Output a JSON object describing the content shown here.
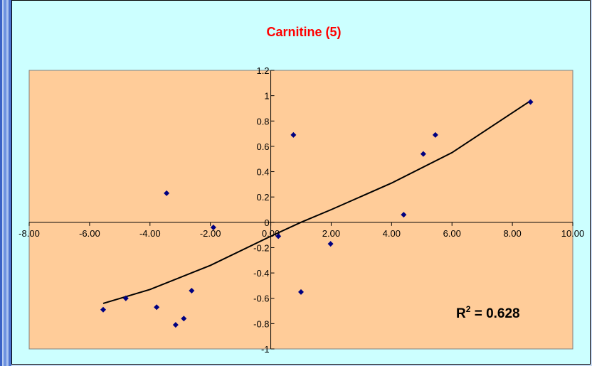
{
  "colors": {
    "chart_area": "#ccffff",
    "plot_area": "#ffcc99",
    "title": "#ff0000",
    "points": "#000080",
    "trendline": "#000000"
  },
  "chart_data": {
    "type": "scatter",
    "title": "Carnitine (5)",
    "xlabel": "",
    "ylabel": "",
    "xlim": [
      -8,
      10
    ],
    "ylim": [
      -1,
      1.2
    ],
    "x_ticks": [
      "-8.00",
      "-6.00",
      "-4.00",
      "-2.00",
      "0.00",
      "2.00",
      "4.00",
      "6.00",
      "8.00",
      "10.00"
    ],
    "x_tick_values": [
      -8,
      -6,
      -4,
      -2,
      0,
      2,
      4,
      6,
      8,
      10
    ],
    "y_ticks": [
      "1.2",
      "1",
      "0.8",
      "0.6",
      "0.4",
      "0.2",
      "0",
      "-0.2",
      "-0.4",
      "-0.6",
      "-0.8",
      "-1"
    ],
    "y_tick_values": [
      1.2,
      1,
      0.8,
      0.6,
      0.4,
      0.2,
      0,
      -0.2,
      -0.4,
      -0.6,
      -0.8,
      -1
    ],
    "grid": false,
    "legend": "none",
    "marker": "diamond",
    "points": [
      {
        "x": -5.55,
        "y": -0.69
      },
      {
        "x": -4.8,
        "y": -0.6
      },
      {
        "x": -3.78,
        "y": -0.67
      },
      {
        "x": -3.45,
        "y": 0.23
      },
      {
        "x": -3.15,
        "y": -0.81
      },
      {
        "x": -2.88,
        "y": -0.76
      },
      {
        "x": -2.62,
        "y": -0.54
      },
      {
        "x": -1.9,
        "y": -0.04
      },
      {
        "x": 0.25,
        "y": -0.11
      },
      {
        "x": 0.75,
        "y": 0.69
      },
      {
        "x": 1.0,
        "y": -0.55
      },
      {
        "x": 1.98,
        "y": -0.17
      },
      {
        "x": 4.4,
        "y": 0.06
      },
      {
        "x": 5.05,
        "y": 0.54
      },
      {
        "x": 5.45,
        "y": 0.69
      },
      {
        "x": 8.6,
        "y": 0.95
      }
    ],
    "trendline": {
      "x": [
        -5.55,
        -4,
        -2,
        0,
        1,
        2,
        4,
        6,
        8.6
      ],
      "y": [
        -0.64,
        -0.53,
        -0.34,
        -0.11,
        0.0,
        0.1,
        0.31,
        0.55,
        0.96
      ]
    },
    "annotation": {
      "prefix": "R",
      "superscript": "2",
      "suffix": " = 0.628"
    }
  }
}
